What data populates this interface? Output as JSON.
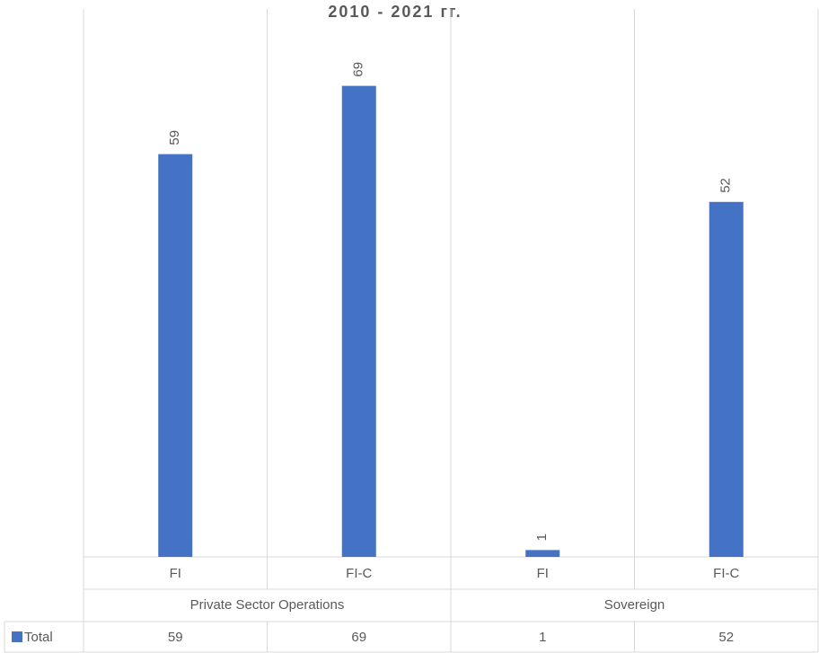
{
  "chart_data": {
    "type": "bar",
    "title": "2010 - 2021 гг.",
    "groups": [
      {
        "name": "Private Sector Operations",
        "categories": [
          "FI",
          "FI-C"
        ]
      },
      {
        "name": "Sovereign",
        "categories": [
          "FI",
          "FI-C"
        ]
      }
    ],
    "series": [
      {
        "name": "Total",
        "color": "#4472c4",
        "values": [
          59,
          69,
          1,
          52
        ]
      }
    ],
    "ylim": [
      0,
      80
    ]
  }
}
